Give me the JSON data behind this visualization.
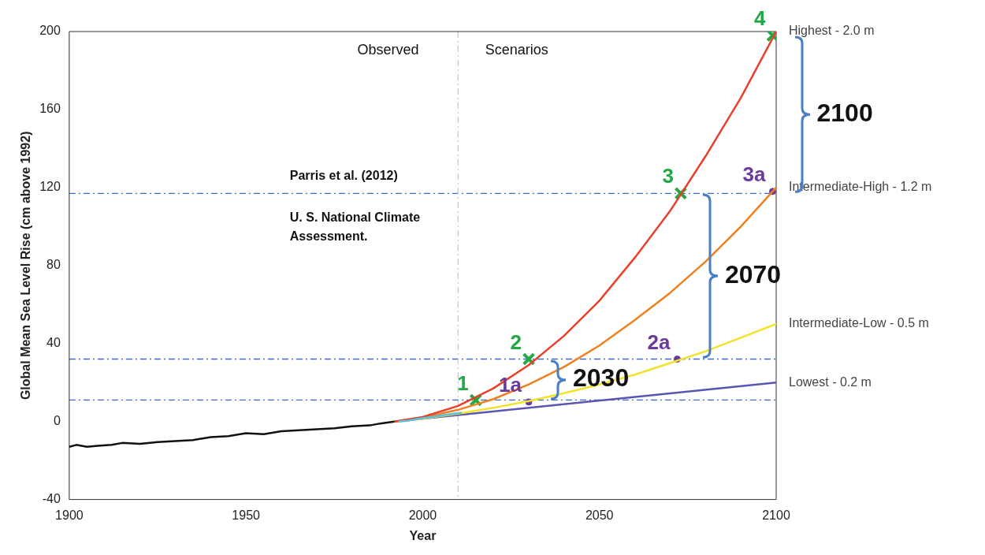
{
  "chart_data": {
    "type": "line",
    "xlabel": "Year",
    "ylabel": "Global Mean Sea Level Rise (cm above 1992)",
    "xlim": [
      1900,
      2100
    ],
    "xticks": [
      1900,
      1950,
      2000,
      2050,
      2100
    ],
    "ylim": [
      -40,
      200
    ],
    "yticks": [
      -40,
      0,
      40,
      80,
      120,
      160,
      200
    ],
    "grid": false,
    "legend": false,
    "marker": "none",
    "line_style": "solid",
    "series": [
      {
        "color": "#111111",
        "x": [
          1900,
          1902,
          1905,
          1908,
          1912,
          1915,
          1920,
          1925,
          1930,
          1935,
          1940,
          1945,
          1950,
          1955,
          1960,
          1965,
          1970,
          1975,
          1980,
          1985,
          1988,
          1992
        ],
        "values": [
          -13,
          -12,
          -13,
          -12.5,
          -12,
          -11,
          -11.5,
          -10.5,
          -10,
          -9.5,
          -8,
          -7.5,
          -6,
          -6.5,
          -5,
          -4.5,
          -4,
          -3.5,
          -2.5,
          -2,
          -1,
          0
        ]
      },
      {
        "color": "#5bc0de",
        "x": [
          1993,
          1996,
          1999,
          2002,
          2005,
          2008,
          2011
        ],
        "values": [
          0,
          0.5,
          1.5,
          2.2,
          3,
          3.8,
          4.5
        ]
      },
      {
        "name": "Highest - 2.0 m",
        "color": "#e8402a",
        "x": [
          1992,
          2000,
          2010,
          2020,
          2030,
          2040,
          2050,
          2060,
          2070,
          2080,
          2090,
          2100
        ],
        "values": [
          0,
          2.3,
          8,
          17,
          29,
          44,
          62,
          84,
          108,
          136,
          166,
          200
        ]
      },
      {
        "name": "Intermediate-High - 1.2 m",
        "color": "#f07f1e",
        "x": [
          1992,
          2000,
          2010,
          2020,
          2030,
          2040,
          2050,
          2060,
          2070,
          2080,
          2090,
          2100
        ],
        "values": [
          0,
          1.9,
          6,
          11.5,
          19,
          28,
          39,
          52,
          66,
          82,
          100,
          120
        ]
      },
      {
        "name": "Intermediate-Low - 0.5 m",
        "color": "#f2e22c",
        "x": [
          1992,
          2000,
          2010,
          2020,
          2030,
          2040,
          2050,
          2060,
          2070,
          2080,
          2090,
          2100
        ],
        "values": [
          0,
          1.5,
          4,
          7,
          10.5,
          14.5,
          19,
          24,
          30,
          36,
          43,
          50
        ]
      },
      {
        "name": "Lowest - 0.2 m",
        "color": "#5a55b0",
        "x": [
          1992,
          2100
        ],
        "values": [
          0,
          20
        ]
      },
      {
        "type": "scatter",
        "marker": "cross",
        "color": "#22a845",
        "x": [
          2015,
          2030,
          2073,
          2099
        ],
        "values": [
          11,
          32,
          117,
          198
        ]
      },
      {
        "type": "scatter",
        "marker": "circle",
        "color": "#6a3a9c",
        "x": [
          2030,
          2072,
          2099
        ],
        "values": [
          10,
          32,
          118
        ]
      }
    ],
    "ref_lines": [
      {
        "axis": "y",
        "value": 11,
        "color": "#3b6cc7",
        "line_style": "dashed"
      },
      {
        "axis": "y",
        "value": 32,
        "color": "#3b6cc7",
        "line_style": "dashed"
      },
      {
        "axis": "y",
        "value": 117,
        "color": "#3b6cc7",
        "line_style": "dashed"
      },
      {
        "axis": "x",
        "value": 2010,
        "color": "#cccccc",
        "line_style": "dashed"
      }
    ],
    "annotations": [
      "Observed",
      "Scenarios",
      "Parris et al. (2012)",
      "U. S. National Climate Assessment.",
      {
        "text": "1",
        "x": 2015,
        "y": 11
      },
      {
        "text": "2",
        "x": 2030,
        "y": 32
      },
      {
        "text": "3",
        "x": 2073,
        "y": 117
      },
      {
        "text": "4",
        "x": 2099,
        "y": 198
      },
      {
        "text": "1a",
        "x": 2030,
        "y": 10
      },
      {
        "text": "2a",
        "x": 2072,
        "y": 32
      },
      {
        "text": "3a",
        "x": 2099,
        "y": 118
      },
      "2030",
      "2070",
      "2100"
    ]
  }
}
